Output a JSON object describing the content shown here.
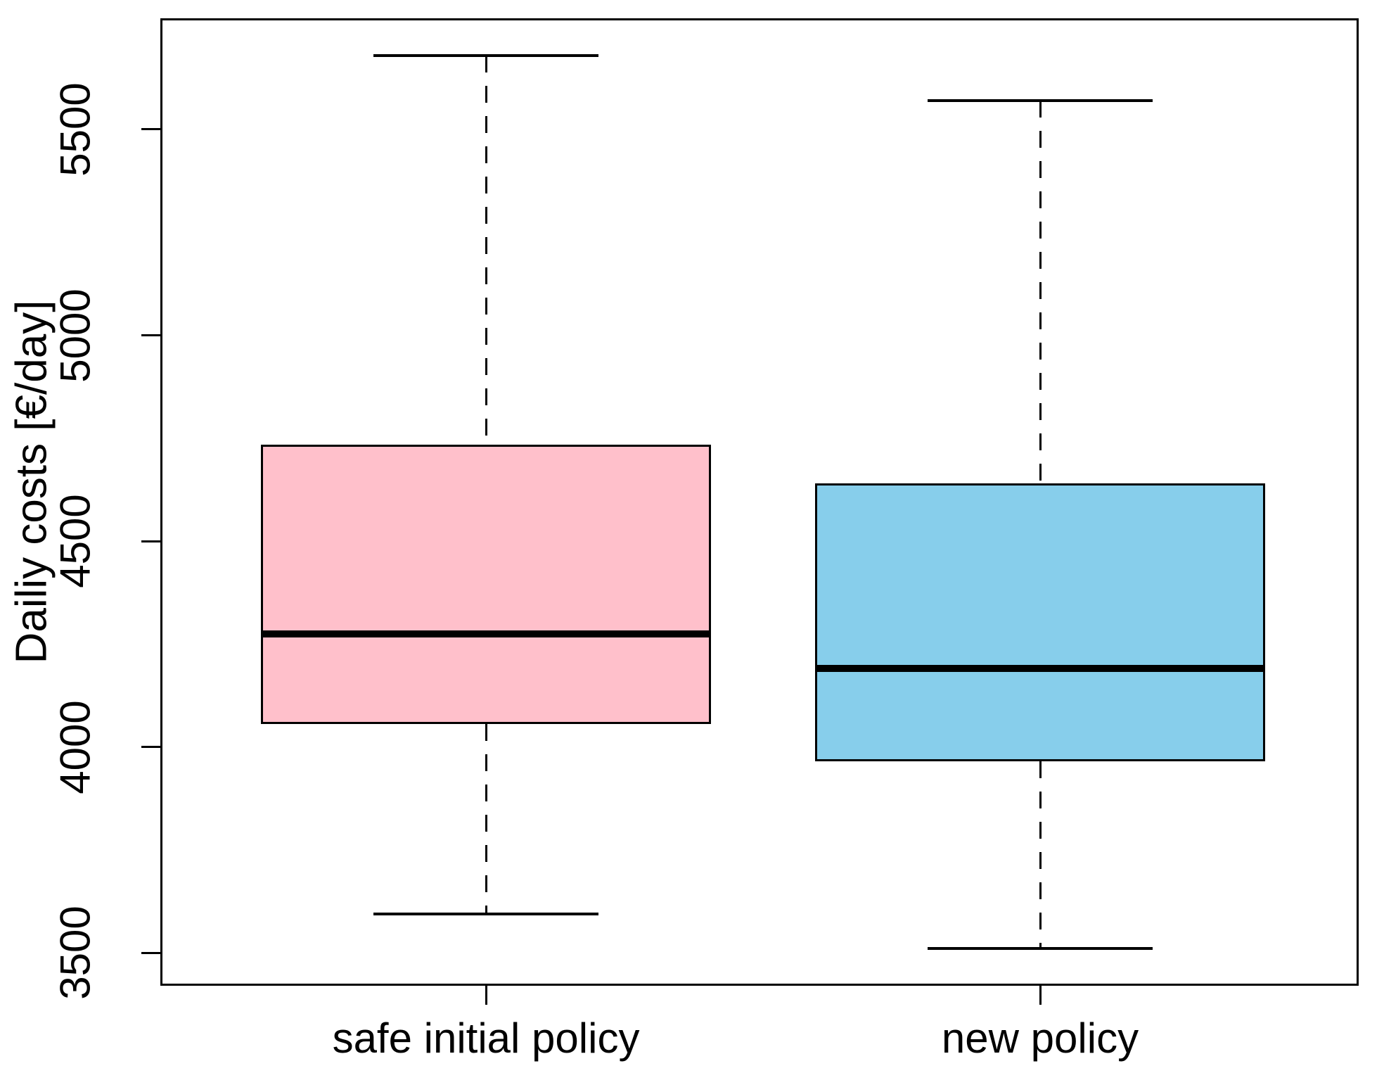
{
  "chart_data": {
    "type": "boxplot",
    "title": "",
    "xlabel": "",
    "ylabel": "Dailiy costs [€/day]",
    "categories": [
      "safe initial policy",
      "new policy"
    ],
    "series": [
      {
        "name": "safe initial policy",
        "color": "#FFC0CB",
        "border_color": "#000000",
        "whisker_low": 3595,
        "q1": 4055,
        "median": 4275,
        "q3": 4735,
        "whisker_high": 5680
      },
      {
        "name": "new policy",
        "color": "#87CEEB",
        "border_color": "#000000",
        "whisker_low": 3510,
        "q1": 3965,
        "median": 4190,
        "q3": 4640,
        "whisker_high": 5570
      }
    ],
    "yticks": [
      3500,
      4000,
      4500,
      5000,
      5500
    ],
    "ylim": [
      3420,
      5770
    ],
    "grid": false,
    "legend": null
  }
}
